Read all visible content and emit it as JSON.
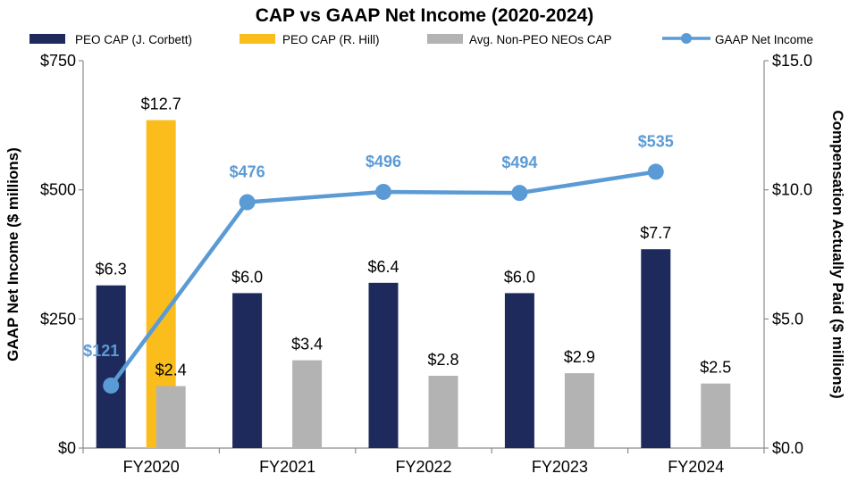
{
  "chart_data": {
    "type": "bar",
    "title": "CAP vs GAAP Net Income (2020-2024)",
    "categories": [
      "FY2020",
      "FY2021",
      "FY2022",
      "FY2023",
      "FY2024"
    ],
    "y_left_label": "GAAP Net Income ($ millions)",
    "y_right_label": "Compensation Actually Paid ($ millions)",
    "y_left_range": [
      0,
      750
    ],
    "y_right_range": [
      0,
      15
    ],
    "y_left_ticks": [
      0,
      250,
      500,
      750
    ],
    "y_left_tick_labels": [
      "$0",
      "$250",
      "$500",
      "$750"
    ],
    "y_right_ticks": [
      0,
      5,
      10,
      15
    ],
    "y_right_tick_labels": [
      "$0.0",
      "$5.0",
      "$10.0",
      "$15.0"
    ],
    "series": [
      {
        "name": "PEO CAP (J. Corbett)",
        "axis": "right",
        "color": "#1f2a5c",
        "values": [
          6.3,
          6.0,
          6.4,
          6.0,
          7.7
        ],
        "labels": [
          "$6.3",
          "$6.0",
          "$6.4",
          "$6.0",
          "$7.7"
        ]
      },
      {
        "name": "PEO CAP (R. Hill)",
        "axis": "right",
        "color": "#fbbd1c",
        "values": [
          12.7,
          null,
          null,
          null,
          null
        ],
        "labels": [
          "$12.7",
          null,
          null,
          null,
          null
        ]
      },
      {
        "name": "Avg. Non-PEO NEOs CAP",
        "axis": "right",
        "color": "#b3b3b3",
        "values": [
          2.4,
          3.4,
          2.8,
          2.9,
          2.5
        ],
        "labels": [
          "$2.4",
          "$3.4",
          "$2.8",
          "$2.9",
          "$2.5"
        ]
      },
      {
        "name": "GAAP Net Income",
        "type": "line",
        "axis": "left",
        "color": "#5b9bd5",
        "values": [
          121,
          476,
          496,
          494,
          535
        ],
        "labels": [
          "$121",
          "$476",
          "$496",
          "$494",
          "$535"
        ]
      }
    ],
    "legend_position": "top",
    "grid": false
  }
}
